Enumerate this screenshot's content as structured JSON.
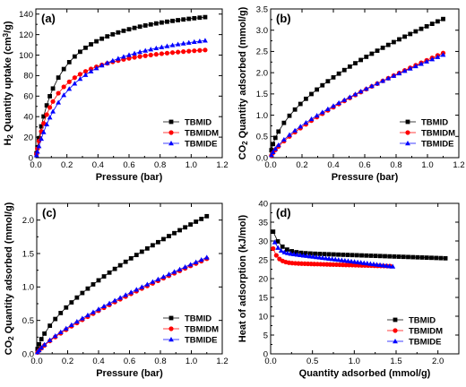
{
  "chart_data": [
    {
      "panel": "(a)",
      "type": "scatter",
      "xlabel": "Pressure (bar)",
      "ylabel_parts": [
        "H",
        "2",
        " Quantity uptake (cm",
        "3",
        "/g)"
      ],
      "xlim": [
        0,
        1.2
      ],
      "ylim": [
        0,
        145
      ],
      "xticks": [
        "0.0",
        "0.2",
        "0.4",
        "0.6",
        "0.8",
        "1.0",
        "1.2"
      ],
      "yticks": [
        "0",
        "20",
        "40",
        "60",
        "80",
        "100",
        "120",
        "140"
      ],
      "legend_position": "bottom-right",
      "model": "langmuir",
      "series": [
        {
          "name": "TBMID",
          "color": "#000000",
          "marker": "square",
          "qmax": 155,
          "k": 7,
          "pmax": 1.12
        },
        {
          "name": "TBMIDM",
          "color": "#ff0000",
          "marker": "circle",
          "qmax": 117,
          "k": 8,
          "pmax": 1.12
        },
        {
          "name": "TBMIDE",
          "color": "#0000ff",
          "marker": "triangle",
          "qmax": 138,
          "k": 4.4,
          "pmax": 1.12
        }
      ]
    },
    {
      "panel": "(b)",
      "type": "scatter",
      "xlabel": "Pressure (bar)",
      "ylabel_parts": [
        "CO",
        "2",
        " Quantity adsorbed (mmol/g)"
      ],
      "xlim": [
        0,
        1.2
      ],
      "ylim": [
        0,
        3.5
      ],
      "xticks": [
        "0.0",
        "0.2",
        "0.4",
        "0.6",
        "0.8",
        "1.0",
        "1.2"
      ],
      "yticks": [
        "0.0",
        "0.5",
        "1.0",
        "1.5",
        "2.0",
        "2.5",
        "3.0",
        "3.5"
      ],
      "legend_position": "bottom-right",
      "model": "power",
      "series": [
        {
          "name": "TBMID",
          "color": "#000000",
          "marker": "square",
          "a": 3.1,
          "n": 0.54,
          "pmax": 1.12
        },
        {
          "name": "TBMIDM",
          "color": "#ff0000",
          "marker": "circle",
          "a": 2.3,
          "n": 0.72,
          "pmax": 1.12
        },
        {
          "name": "TBMIDE",
          "color": "#0000ff",
          "marker": "triangle",
          "a": 2.27,
          "n": 0.68,
          "pmax": 1.12
        }
      ]
    },
    {
      "panel": "(c)",
      "type": "scatter",
      "xlabel": "Pressure (bar)",
      "ylabel_parts": [
        "CO",
        "2",
        " Quantity adsorbed (mmol/g)"
      ],
      "xlim": [
        0,
        1.2
      ],
      "ylim": [
        0,
        2.25
      ],
      "xticks": [
        "0.0",
        "0.2",
        "0.4",
        "0.6",
        "0.8",
        "1.0",
        "1.2"
      ],
      "yticks": [
        "0.0",
        "0.5",
        "1.0",
        "1.5",
        "2.0"
      ],
      "legend_position": "bottom-right",
      "model": "power",
      "series": [
        {
          "name": "TBMID",
          "color": "#000000",
          "marker": "square",
          "a": 1.94,
          "n": 0.62,
          "pmax": 1.12
        },
        {
          "name": "TBMIDM",
          "color": "#ff0000",
          "marker": "circle",
          "a": 1.32,
          "n": 0.78,
          "pmax": 1.12
        },
        {
          "name": "TBMIDE",
          "color": "#0000ff",
          "marker": "triangle",
          "a": 1.34,
          "n": 0.76,
          "pmax": 1.12
        }
      ]
    },
    {
      "panel": "(d)",
      "type": "scatter",
      "xlabel": "Quantity adsorbed (mmol/g)",
      "ylabel_parts": [
        "Heat of adsorption (kJ/mol)"
      ],
      "xlim": [
        0,
        2.25
      ],
      "ylim": [
        0,
        40
      ],
      "xticks": [
        "0.0",
        "0.5",
        "1.0",
        "1.5",
        "2.0"
      ],
      "yticks": [
        "0",
        "5",
        "10",
        "15",
        "20",
        "25",
        "30",
        "35",
        "40"
      ],
      "legend_position": "bottom-left",
      "model": "decay",
      "series": [
        {
          "name": "TBMID",
          "color": "#000000",
          "marker": "square",
          "base": 25.4,
          "slope": 1.6,
          "amp": 5.5,
          "tau": 0.09,
          "x0": 0.03,
          "x1": 2.09
        },
        {
          "name": "TBMIDM",
          "color": "#ff0000",
          "marker": "circle",
          "base": 23.3,
          "slope": 0.9,
          "amp": 3.8,
          "tau": 0.06,
          "x0": 0.03,
          "x1": 1.43
        },
        {
          "name": "TBMIDE",
          "color": "#0000ff",
          "marker": "triangle",
          "base": 23.2,
          "slope": 4.0,
          "amp": 2.6,
          "tau": 0.05,
          "x0": 0.05,
          "x1": 1.46
        }
      ]
    }
  ]
}
